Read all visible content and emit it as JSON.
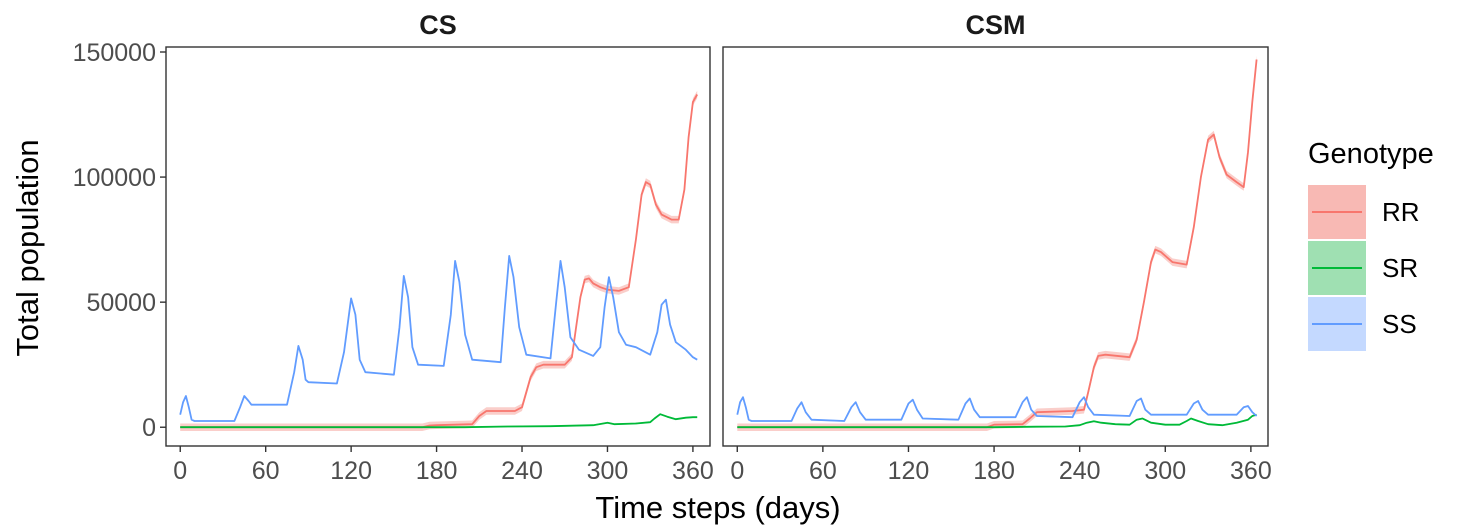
{
  "chart_data": {
    "type": "line",
    "xlabel": "Time steps (days)",
    "ylabel": "Total population",
    "xlim": [
      -10,
      372
    ],
    "ylim": [
      -7500,
      152000
    ],
    "x_ticks": [
      0,
      60,
      120,
      180,
      240,
      300,
      360
    ],
    "x_tick_labels": [
      "0",
      "60",
      "120",
      "180",
      "240",
      "300",
      "360"
    ],
    "y_ticks": [
      0,
      50000,
      100000,
      150000
    ],
    "y_tick_labels": [
      "0",
      "50000",
      "100000",
      "150000"
    ],
    "grid": false,
    "legend": {
      "title": "Genotype",
      "position": "right",
      "entries": [
        {
          "name": "RR",
          "color": "#F8766D",
          "fill": "#F8B9B4"
        },
        {
          "name": "SR",
          "color": "#00BA38",
          "fill": "#9FE0B2"
        },
        {
          "name": "SS",
          "color": "#619CFF",
          "fill": "#C4D9FF"
        }
      ]
    },
    "panels": [
      {
        "title": "CS",
        "series": [
          {
            "name": "RR",
            "band": 1500,
            "points": [
              [
                0,
                0
              ],
              [
                170,
                0
              ],
              [
                175,
                700
              ],
              [
                180,
                800
              ],
              [
                205,
                1200
              ],
              [
                210,
                4500
              ],
              [
                215,
                6500
              ],
              [
                235,
                6500
              ],
              [
                240,
                8000
              ],
              [
                243,
                14000
              ],
              [
                246,
                20000
              ],
              [
                250,
                24000
              ],
              [
                255,
                25000
              ],
              [
                270,
                25000
              ],
              [
                275,
                28000
              ],
              [
                278,
                40000
              ],
              [
                281,
                52000
              ],
              [
                284,
                59000
              ],
              [
                287,
                59500
              ],
              [
                290,
                57500
              ],
              [
                295,
                56000
              ],
              [
                300,
                55000
              ],
              [
                308,
                54500
              ],
              [
                315,
                56000
              ],
              [
                320,
                75000
              ],
              [
                324,
                93000
              ],
              [
                327,
                98000
              ],
              [
                330,
                97000
              ],
              [
                334,
                89000
              ],
              [
                338,
                85000
              ],
              [
                345,
                83000
              ],
              [
                350,
                83000
              ],
              [
                354,
                95000
              ],
              [
                357,
                116000
              ],
              [
                360,
                130000
              ],
              [
                363,
                133000
              ]
            ]
          },
          {
            "name": "SR",
            "band": 300,
            "points": [
              [
                0,
                0
              ],
              [
                200,
                0
              ],
              [
                230,
                300
              ],
              [
                260,
                400
              ],
              [
                290,
                800
              ],
              [
                300,
                1800
              ],
              [
                305,
                1200
              ],
              [
                320,
                1500
              ],
              [
                330,
                2000
              ],
              [
                333,
                3500
              ],
              [
                337,
                5200
              ],
              [
                342,
                4200
              ],
              [
                348,
                3200
              ],
              [
                355,
                3800
              ],
              [
                360,
                4000
              ],
              [
                363,
                4000
              ]
            ]
          },
          {
            "name": "SS",
            "band": 300,
            "points": [
              [
                0,
                5000
              ],
              [
                2,
                10000
              ],
              [
                4,
                12500
              ],
              [
                6,
                8000
              ],
              [
                8,
                3000
              ],
              [
                10,
                2500
              ],
              [
                38,
                2500
              ],
              [
                42,
                8000
              ],
              [
                45,
                12500
              ],
              [
                48,
                10500
              ],
              [
                50,
                9000
              ],
              [
                75,
                9000
              ],
              [
                80,
                22000
              ],
              [
                83,
                32500
              ],
              [
                86,
                27000
              ],
              [
                88,
                19000
              ],
              [
                90,
                18000
              ],
              [
                110,
                17500
              ],
              [
                115,
                30000
              ],
              [
                120,
                51500
              ],
              [
                123,
                45000
              ],
              [
                126,
                27000
              ],
              [
                130,
                22000
              ],
              [
                150,
                21000
              ],
              [
                154,
                40000
              ],
              [
                157,
                60500
              ],
              [
                160,
                52000
              ],
              [
                163,
                32000
              ],
              [
                167,
                25000
              ],
              [
                185,
                24500
              ],
              [
                190,
                45000
              ],
              [
                193,
                66500
              ],
              [
                196,
                58000
              ],
              [
                200,
                37000
              ],
              [
                205,
                27000
              ],
              [
                225,
                26000
              ],
              [
                228,
                48000
              ],
              [
                231,
                68500
              ],
              [
                234,
                60000
              ],
              [
                238,
                40000
              ],
              [
                243,
                29000
              ],
              [
                260,
                27500
              ],
              [
                264,
                50000
              ],
              [
                267,
                66500
              ],
              [
                270,
                56000
              ],
              [
                274,
                36000
              ],
              [
                280,
                31000
              ],
              [
                290,
                28500
              ],
              [
                295,
                32000
              ],
              [
                298,
                48000
              ],
              [
                301,
                60000
              ],
              [
                304,
                52000
              ],
              [
                308,
                38000
              ],
              [
                313,
                33000
              ],
              [
                320,
                32000
              ],
              [
                330,
                29000
              ],
              [
                335,
                38000
              ],
              [
                338,
                49000
              ],
              [
                341,
                51000
              ],
              [
                344,
                41000
              ],
              [
                348,
                34000
              ],
              [
                355,
                31000
              ],
              [
                360,
                28000
              ],
              [
                363,
                27000
              ]
            ]
          }
        ]
      },
      {
        "title": "CSM",
        "series": [
          {
            "name": "RR",
            "band": 1500,
            "points": [
              [
                0,
                0
              ],
              [
                175,
                0
              ],
              [
                180,
                1000
              ],
              [
                200,
                1200
              ],
              [
                205,
                3500
              ],
              [
                210,
                6000
              ],
              [
                235,
                6500
              ],
              [
                243,
                7000
              ],
              [
                246,
                14000
              ],
              [
                250,
                24000
              ],
              [
                253,
                28500
              ],
              [
                258,
                29000
              ],
              [
                275,
                28000
              ],
              [
                280,
                35000
              ],
              [
                285,
                50000
              ],
              [
                290,
                66000
              ],
              [
                293,
                71000
              ],
              [
                297,
                70000
              ],
              [
                305,
                66000
              ],
              [
                315,
                65000
              ],
              [
                320,
                80000
              ],
              [
                325,
                100000
              ],
              [
                330,
                115000
              ],
              [
                334,
                117000
              ],
              [
                338,
                108000
              ],
              [
                343,
                101000
              ],
              [
                350,
                98000
              ],
              [
                355,
                96000
              ],
              [
                358,
                110000
              ],
              [
                361,
                130000
              ],
              [
                364,
                147000
              ]
            ]
          },
          {
            "name": "SR",
            "band": 300,
            "points": [
              [
                0,
                0
              ],
              [
                180,
                0
              ],
              [
                210,
                200
              ],
              [
                230,
                300
              ],
              [
                240,
                800
              ],
              [
                245,
                1800
              ],
              [
                250,
                2400
              ],
              [
                255,
                1800
              ],
              [
                265,
                1200
              ],
              [
                275,
                1000
              ],
              [
                280,
                3000
              ],
              [
                284,
                3500
              ],
              [
                290,
                1800
              ],
              [
                300,
                1000
              ],
              [
                310,
                1000
              ],
              [
                315,
                2500
              ],
              [
                318,
                3500
              ],
              [
                323,
                2500
              ],
              [
                330,
                1200
              ],
              [
                340,
                800
              ],
              [
                350,
                1800
              ],
              [
                358,
                3000
              ],
              [
                361,
                4500
              ],
              [
                364,
                5000
              ]
            ]
          },
          {
            "name": "SS",
            "band": 300,
            "points": [
              [
                0,
                5000
              ],
              [
                2,
                10000
              ],
              [
                4,
                12000
              ],
              [
                6,
                8000
              ],
              [
                8,
                3000
              ],
              [
                10,
                2500
              ],
              [
                38,
                2500
              ],
              [
                42,
                7500
              ],
              [
                45,
                10000
              ],
              [
                48,
                6000
              ],
              [
                52,
                3000
              ],
              [
                75,
                2500
              ],
              [
                80,
                8000
              ],
              [
                83,
                10000
              ],
              [
                86,
                6000
              ],
              [
                90,
                3000
              ],
              [
                115,
                3000
              ],
              [
                120,
                9500
              ],
              [
                123,
                11000
              ],
              [
                126,
                7000
              ],
              [
                130,
                3500
              ],
              [
                155,
                3000
              ],
              [
                160,
                9500
              ],
              [
                163,
                11500
              ],
              [
                166,
                7000
              ],
              [
                170,
                4000
              ],
              [
                195,
                4000
              ],
              [
                200,
                10000
              ],
              [
                203,
                12000
              ],
              [
                206,
                7000
              ],
              [
                210,
                4500
              ],
              [
                235,
                4000
              ],
              [
                240,
                10000
              ],
              [
                243,
                12000
              ],
              [
                246,
                8000
              ],
              [
                250,
                5000
              ],
              [
                275,
                4500
              ],
              [
                280,
                10500
              ],
              [
                283,
                11500
              ],
              [
                286,
                7000
              ],
              [
                290,
                5000
              ],
              [
                315,
                5000
              ],
              [
                320,
                9500
              ],
              [
                323,
                10500
              ],
              [
                326,
                7000
              ],
              [
                330,
                5000
              ],
              [
                350,
                5000
              ],
              [
                355,
                8000
              ],
              [
                358,
                8500
              ],
              [
                361,
                6000
              ],
              [
                364,
                4500
              ]
            ]
          }
        ]
      }
    ]
  }
}
